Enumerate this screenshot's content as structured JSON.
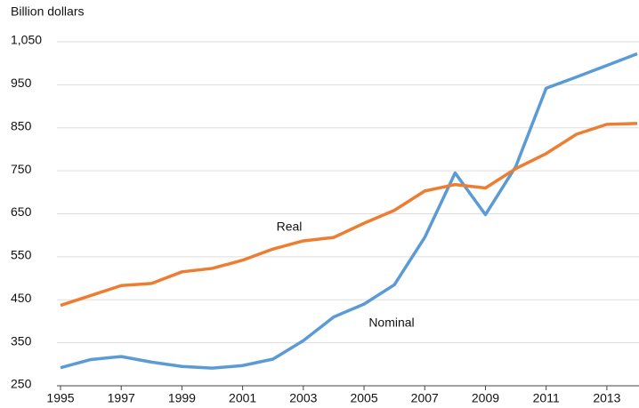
{
  "chart_data": {
    "type": "line",
    "ylabel": "Billion dollars",
    "x": [
      1995,
      1996,
      1997,
      1998,
      1999,
      2000,
      2001,
      2002,
      2003,
      2004,
      2005,
      2006,
      2007,
      2008,
      2009,
      2010,
      2011,
      2012,
      2013,
      2014
    ],
    "series": [
      {
        "name": "Nominal",
        "color": "#5b9bd5",
        "values": [
          292,
          311,
          318,
          305,
          295,
          291,
          297,
          312,
          355,
          410,
          440,
          485,
          595,
          745,
          648,
          760,
          942,
          968,
          995,
          1022
        ]
      },
      {
        "name": "Real",
        "color": "#ed7d31",
        "values": [
          437,
          460,
          483,
          488,
          515,
          523,
          542,
          568,
          587,
          595,
          628,
          658,
          703,
          718,
          710,
          755,
          790,
          835,
          858,
          860
        ]
      }
    ],
    "xlim": [
      1995,
      2014
    ],
    "xticks": [
      1995,
      1997,
      1999,
      2001,
      2003,
      2005,
      2007,
      2009,
      2011,
      2013
    ],
    "ylim": [
      250,
      1050
    ],
    "yticks": [
      250,
      350,
      450,
      550,
      650,
      750,
      850,
      950,
      {
        "value": 1050,
        "label": "1,050"
      }
    ],
    "grid": true
  }
}
